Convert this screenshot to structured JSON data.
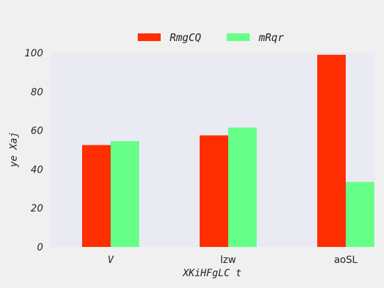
{
  "chart_data": {
    "type": "bar",
    "categories": [
      "V",
      "lzw",
      "aoSL"
    ],
    "series": [
      {
        "name": "RmgCQ",
        "color": "#ff2e00",
        "values": [
          52.5,
          57.5,
          99
        ]
      },
      {
        "name": "mRqr",
        "color": "#66ff88",
        "values": [
          54.5,
          61.5,
          33.5
        ]
      }
    ],
    "xlabel": "XKiHFgLC t",
    "ylabel": "ye Xaj",
    "ylim": [
      0,
      100
    ],
    "yticks": [
      0,
      20,
      40,
      60,
      80,
      100
    ],
    "grid": false,
    "legend_position": "top-center",
    "plot_background": "#eaeaf2",
    "page_background": "#f0f0f0"
  }
}
